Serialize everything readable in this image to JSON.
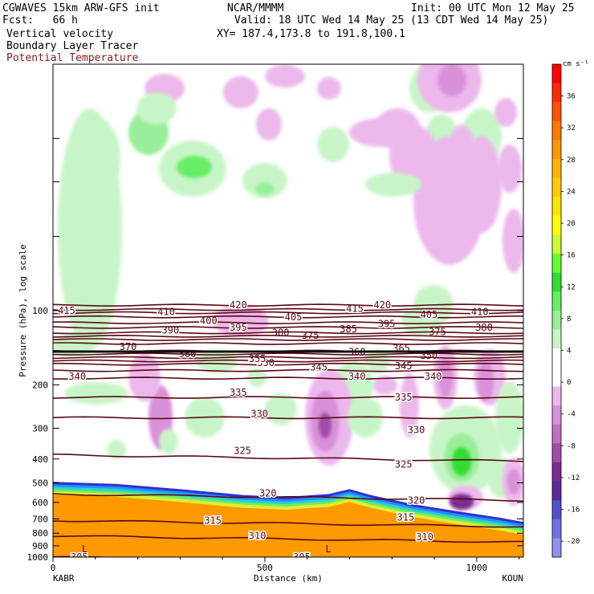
{
  "header": {
    "model": "CGWAVES 15km ARW-GFS init",
    "forecast": "Fcst:   66 h",
    "field1": "Vertical velocity",
    "field2": "Boundary Layer Tracer",
    "field3": "Potential Temperature",
    "org": "NCAR/MMMM",
    "init": "Init: 00 UTC Mon 12 May 25",
    "valid": "Valid: 18 UTC Wed 14 May 25 (13 CDT Wed 14 May 25)",
    "xy": "XY= 187.4,173.8 to 191.8,100.1",
    "field3_color": "#8b1a1a"
  },
  "colorbar": {
    "units": "cm s⁻¹",
    "tick_labels": [
      "36",
      "32",
      "28",
      "24",
      "20",
      "16",
      "12",
      "8",
      "4",
      "0",
      "-4",
      "-8",
      "-12",
      "-16",
      "-20"
    ],
    "colors": [
      "#ff0000",
      "#ff2a00",
      "#ff5200",
      "#ff7a00",
      "#ff9900",
      "#ffb300",
      "#ffcc00",
      "#ffe600",
      "#ffff00",
      "#ccff33",
      "#66ff33",
      "#33dd33",
      "#66ee66",
      "#99ee99",
      "#c8f5c8",
      "#ffffff",
      "#ffffff",
      "#ecb8ec",
      "#d890d8",
      "#c070c0",
      "#a04ca8",
      "#7a2a90",
      "#5a2a9a",
      "#5050c8",
      "#7070e0",
      "#9090f0"
    ]
  },
  "chart_data": {
    "type": "heatmap",
    "title": "Vertical velocity / Boundary Layer Tracer / Potential Temperature",
    "xlabel": "Distance (km)",
    "ylabel": "Pressure (hPa), log scale",
    "x_ticks": [
      "0",
      "500",
      "1000"
    ],
    "x_endpoints": [
      "KABR",
      "KOUN"
    ],
    "y_ticks": [
      "100",
      "200",
      "300",
      "400",
      "500",
      "600",
      "700",
      "800",
      "900",
      "1000"
    ],
    "xlim": [
      0,
      1110
    ],
    "ylim_hpa": [
      1000,
      10
    ],
    "y_scale": "log",
    "colorbar_range": [
      -20,
      40
    ],
    "theta_contours": [
      {
        "value": 305,
        "labels": [
          {
            "x": 85,
            "p": 1000
          },
          {
            "x": 610,
            "p": 1000
          }
        ]
      },
      {
        "value": 310,
        "labels": [
          {
            "x": 505,
            "p": 820
          },
          {
            "x": 900,
            "p": 830
          }
        ]
      },
      {
        "value": 315,
        "labels": [
          {
            "x": 400,
            "p": 710
          },
          {
            "x": 855,
            "p": 690
          }
        ]
      },
      {
        "value": 320,
        "labels": [
          {
            "x": 530,
            "p": 550
          },
          {
            "x": 880,
            "p": 590
          }
        ]
      },
      {
        "value": 325,
        "labels": [
          {
            "x": 470,
            "p": 370
          },
          {
            "x": 850,
            "p": 420
          }
        ]
      },
      {
        "value": 330,
        "labels": [
          {
            "x": 510,
            "p": 262
          },
          {
            "x": 880,
            "p": 305
          }
        ]
      },
      {
        "value": 335,
        "labels": [
          {
            "x": 460,
            "p": 215
          },
          {
            "x": 850,
            "p": 225
          }
        ]
      },
      {
        "value": 340,
        "labels": [
          {
            "x": 80,
            "p": 185
          },
          {
            "x": 740,
            "p": 185
          },
          {
            "x": 920,
            "p": 185
          }
        ]
      },
      {
        "value": 345,
        "labels": [
          {
            "x": 650,
            "p": 170
          },
          {
            "x": 850,
            "p": 168
          }
        ]
      },
      {
        "value": 350,
        "labels": [
          {
            "x": 525,
            "p": 163
          },
          {
            "x": 910,
            "p": 152
          }
        ]
      },
      {
        "value": 355,
        "labels": [
          {
            "x": 505,
            "p": 157
          }
        ]
      },
      {
        "value": 360,
        "labels": [
          {
            "x": 340,
            "p": 150
          },
          {
            "x": 740,
            "p": 147
          }
        ]
      },
      {
        "value": 365,
        "labels": [
          {
            "x": 845,
            "p": 142
          }
        ]
      },
      {
        "value": 370,
        "labels": [
          {
            "x": 200,
            "p": 140
          }
        ]
      },
      {
        "value": 375,
        "labels": [
          {
            "x": 630,
            "p": 126
          },
          {
            "x": 930,
            "p": 122
          }
        ]
      },
      {
        "value": 380,
        "labels": [
          {
            "x": 560,
            "p": 123
          },
          {
            "x": 1040,
            "p": 117
          }
        ]
      },
      {
        "value": 385,
        "labels": [
          {
            "x": 720,
            "p": 119
          }
        ]
      },
      {
        "value": 390,
        "labels": [
          {
            "x": 300,
            "p": 120
          }
        ]
      },
      {
        "value": 395,
        "labels": [
          {
            "x": 460,
            "p": 117
          },
          {
            "x": 810,
            "p": 113
          }
        ]
      },
      {
        "value": 400,
        "labels": [
          {
            "x": 390,
            "p": 110
          }
        ]
      },
      {
        "value": 405,
        "labels": [
          {
            "x": 590,
            "p": 106
          },
          {
            "x": 910,
            "p": 104
          }
        ]
      },
      {
        "value": 410,
        "labels": [
          {
            "x": 290,
            "p": 101
          },
          {
            "x": 1030,
            "p": 101
          }
        ]
      },
      {
        "value": 415,
        "labels": [
          {
            "x": 55,
            "p": 100
          },
          {
            "x": 735,
            "p": 98
          }
        ]
      },
      {
        "value": 420,
        "labels": [
          {
            "x": 460,
            "p": 95
          },
          {
            "x": 800,
            "p": 95
          }
        ]
      }
    ],
    "surface_pressure": [
      [
        0,
        495
      ],
      [
        150,
        505
      ],
      [
        300,
        530
      ],
      [
        450,
        560
      ],
      [
        550,
        570
      ],
      [
        650,
        555
      ],
      [
        700,
        530
      ],
      [
        750,
        560
      ],
      [
        850,
        610
      ],
      [
        950,
        650
      ],
      [
        1050,
        690
      ],
      [
        1110,
        720
      ]
    ],
    "boundary_layer_tracer": {
      "type": "area",
      "note_levels": [
        "blue",
        "cyan",
        "green",
        "yellow",
        "orange"
      ]
    },
    "low_markers": [
      {
        "label": "L",
        "x": 75,
        "p": 920
      },
      {
        "label": "L",
        "x": 650,
        "p": 920
      }
    ]
  }
}
